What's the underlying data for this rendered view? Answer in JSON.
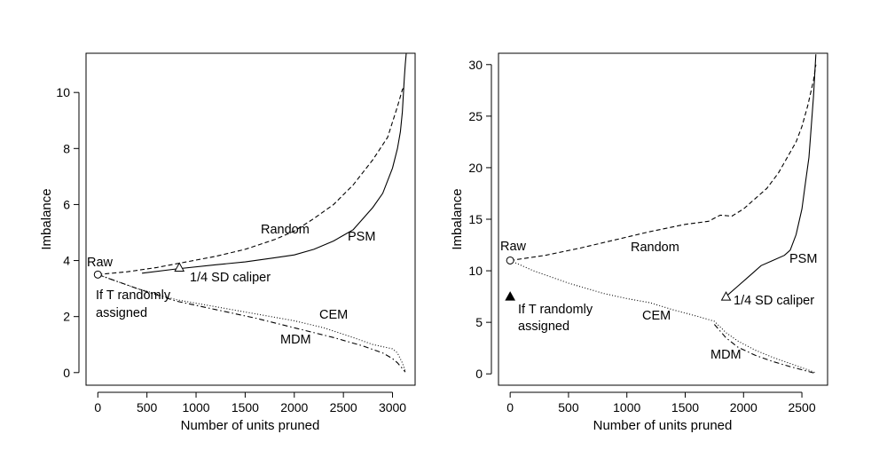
{
  "chart_data": [
    {
      "type": "line",
      "xlabel": "Number of units pruned",
      "ylabel": "Imbalance",
      "xlim": [
        -120,
        3230
      ],
      "ylim": [
        -0.45,
        11.4
      ],
      "xticks": [
        0,
        500,
        1000,
        1500,
        2000,
        2500,
        3000
      ],
      "yticks": [
        0,
        2,
        4,
        6,
        8,
        10
      ],
      "series": [
        {
          "name": "Random",
          "style": "dashed",
          "x": [
            0,
            300,
            600,
            900,
            1200,
            1500,
            1800,
            2000,
            2200,
            2400,
            2600,
            2800,
            2950,
            3050,
            3100,
            3120
          ],
          "y": [
            3.5,
            3.6,
            3.75,
            3.95,
            4.15,
            4.4,
            4.75,
            5.05,
            5.5,
            6.0,
            6.7,
            7.6,
            8.4,
            9.5,
            10.1,
            10.2
          ]
        },
        {
          "name": "PSM",
          "style": "solid",
          "x": [
            450,
            800,
            1200,
            1500,
            1800,
            2000,
            2200,
            2400,
            2500,
            2600,
            2700,
            2800,
            2900,
            3000,
            3050,
            3080,
            3100,
            3120,
            3130,
            3140
          ],
          "y": [
            3.55,
            3.7,
            3.85,
            3.95,
            4.1,
            4.2,
            4.4,
            4.7,
            4.9,
            5.1,
            5.5,
            5.9,
            6.4,
            7.3,
            8.0,
            8.6,
            9.3,
            10.5,
            11.0,
            11.4
          ]
        },
        {
          "name": "CEM",
          "style": "dotted",
          "x": [
            0,
            400,
            800,
            1200,
            1600,
            2000,
            2300,
            2600,
            2800,
            3000,
            3050,
            3100,
            3130
          ],
          "y": [
            3.5,
            3.0,
            2.6,
            2.35,
            2.1,
            1.85,
            1.6,
            1.25,
            1.0,
            0.85,
            0.7,
            0.35,
            0.05
          ]
        },
        {
          "name": "MDM",
          "style": "dashdot",
          "x": [
            0,
            400,
            800,
            1200,
            1600,
            2000,
            2400,
            2700,
            2900,
            3000,
            3050,
            3100,
            3130
          ],
          "y": [
            3.5,
            3.0,
            2.55,
            2.25,
            1.95,
            1.6,
            1.25,
            0.95,
            0.7,
            0.5,
            0.35,
            0.15,
            0.02
          ]
        }
      ],
      "markers": [
        {
          "shape": "open-circle",
          "x": 0,
          "y": 3.5,
          "label": "Raw"
        },
        {
          "shape": "open-triangle",
          "x": 830,
          "y": 3.75,
          "label": "1/4 SD caliper"
        }
      ],
      "annotations": [
        "Raw",
        "1/4 SD caliper",
        "If T randomly",
        "assigned",
        "Random",
        "PSM",
        "CEM",
        "MDM"
      ]
    },
    {
      "type": "line",
      "xlabel": "Number of units pruned",
      "ylabel": "Imbalance",
      "xlim": [
        -100,
        2720
      ],
      "ylim": [
        -1.1,
        31.1
      ],
      "xticks": [
        0,
        500,
        1000,
        1500,
        2000,
        2500
      ],
      "yticks": [
        0,
        5,
        10,
        15,
        20,
        25,
        30
      ],
      "series": [
        {
          "name": "Random",
          "style": "dashed",
          "x": [
            0,
            300,
            600,
            900,
            1200,
            1500,
            1700,
            1800,
            1900,
            2000,
            2100,
            2200,
            2300,
            2400,
            2450,
            2500,
            2550,
            2600,
            2620
          ],
          "y": [
            11.0,
            11.5,
            12.2,
            13.0,
            13.8,
            14.5,
            14.8,
            15.4,
            15.3,
            16.0,
            17.0,
            18.0,
            19.5,
            21.5,
            22.5,
            24.0,
            26.0,
            28.5,
            30.0
          ]
        },
        {
          "name": "PSM",
          "style": "solid",
          "x": [
            1850,
            1950,
            2050,
            2150,
            2250,
            2350,
            2400,
            2450,
            2500,
            2530,
            2560,
            2580,
            2600,
            2610,
            2620
          ],
          "y": [
            7.5,
            8.5,
            9.5,
            10.5,
            11.0,
            11.5,
            12.0,
            13.5,
            16.0,
            18.5,
            21.0,
            24.0,
            27.0,
            29.0,
            31.0
          ]
        },
        {
          "name": "CEM",
          "style": "dotted",
          "x": [
            0,
            200,
            500,
            800,
            1000,
            1200,
            1400,
            1600,
            1750,
            1850,
            1950,
            2100,
            2250,
            2400,
            2500,
            2550,
            2620
          ],
          "y": [
            11.0,
            10.0,
            8.8,
            7.8,
            7.3,
            6.9,
            6.2,
            5.6,
            5.1,
            4.0,
            3.2,
            2.3,
            1.6,
            1.0,
            0.6,
            0.4,
            0.1
          ]
        },
        {
          "name": "MDM",
          "style": "dashdot",
          "x": [
            1750,
            1850,
            1950,
            2100,
            2250,
            2400,
            2500,
            2600,
            2620
          ],
          "y": [
            4.8,
            3.5,
            2.6,
            1.8,
            1.2,
            0.7,
            0.4,
            0.1,
            0.05
          ]
        }
      ],
      "markers": [
        {
          "shape": "open-circle",
          "x": 0,
          "y": 11.0,
          "label": "Raw"
        },
        {
          "shape": "open-triangle",
          "x": 1850,
          "y": 7.5,
          "label": "1/4 SD caliper"
        },
        {
          "shape": "filled-triangle",
          "x": 0,
          "y": 7.5,
          "label": "If T randomly assigned"
        }
      ],
      "annotations": [
        "Raw",
        "Random",
        "PSM",
        "1/4 SD caliper",
        "If T randomly",
        "assigned",
        "CEM",
        "MDM"
      ]
    }
  ]
}
